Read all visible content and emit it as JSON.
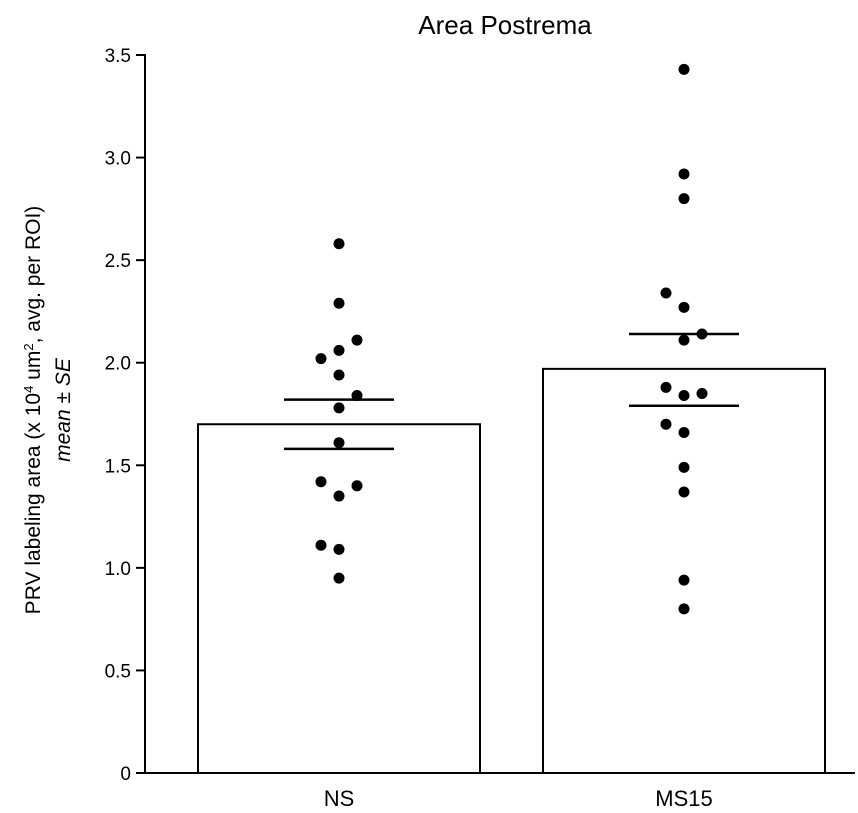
{
  "chart_data": {
    "type": "bar",
    "title": "Area Postrema",
    "ylabel": {
      "prefix": "PRV labeling area (x 10",
      "sup1": "4",
      "mid": " um",
      "sup2": "2",
      "suffix": ", avg. per ROI)",
      "subline": "mean ± SE"
    },
    "ylim": [
      0,
      3.5
    ],
    "yticks": [
      {
        "value": 0,
        "label": "0"
      },
      {
        "value": 0.5,
        "label": "0.5"
      },
      {
        "value": 1.0,
        "label": "1.0"
      },
      {
        "value": 1.5,
        "label": "1.5"
      },
      {
        "value": 2.0,
        "label": "2.0"
      },
      {
        "value": 2.5,
        "label": "2.5"
      },
      {
        "value": 3.0,
        "label": "3.0"
      },
      {
        "value": 3.5,
        "label": "3.5"
      }
    ],
    "categories": [
      "NS",
      "MS15"
    ],
    "values": [
      1.7,
      1.97
    ],
    "error": [
      {
        "low": 1.58,
        "high": 1.82
      },
      {
        "low": 1.79,
        "high": 2.14
      }
    ],
    "points": [
      [
        {
          "v": 2.58,
          "d": 0
        },
        {
          "v": 2.29,
          "d": 0
        },
        {
          "v": 2.11,
          "d": 1
        },
        {
          "v": 2.06,
          "d": 0
        },
        {
          "v": 2.02,
          "d": -1
        },
        {
          "v": 1.94,
          "d": 0
        },
        {
          "v": 1.84,
          "d": 1
        },
        {
          "v": 1.78,
          "d": 0
        },
        {
          "v": 1.61,
          "d": 0
        },
        {
          "v": 1.42,
          "d": -1
        },
        {
          "v": 1.4,
          "d": 1
        },
        {
          "v": 1.35,
          "d": 0
        },
        {
          "v": 1.11,
          "d": -1
        },
        {
          "v": 1.09,
          "d": 0
        },
        {
          "v": 0.95,
          "d": 0
        }
      ],
      [
        {
          "v": 3.43,
          "d": 0
        },
        {
          "v": 2.92,
          "d": 0
        },
        {
          "v": 2.8,
          "d": 0
        },
        {
          "v": 2.34,
          "d": -1
        },
        {
          "v": 2.27,
          "d": 0
        },
        {
          "v": 2.14,
          "d": 1
        },
        {
          "v": 2.11,
          "d": 0
        },
        {
          "v": 1.88,
          "d": -1
        },
        {
          "v": 1.85,
          "d": 1
        },
        {
          "v": 1.84,
          "d": 0
        },
        {
          "v": 1.7,
          "d": -1
        },
        {
          "v": 1.66,
          "d": 0
        },
        {
          "v": 1.49,
          "d": 0
        },
        {
          "v": 1.37,
          "d": 0
        },
        {
          "v": 0.94,
          "d": 0
        },
        {
          "v": 0.8,
          "d": 0
        }
      ]
    ]
  }
}
